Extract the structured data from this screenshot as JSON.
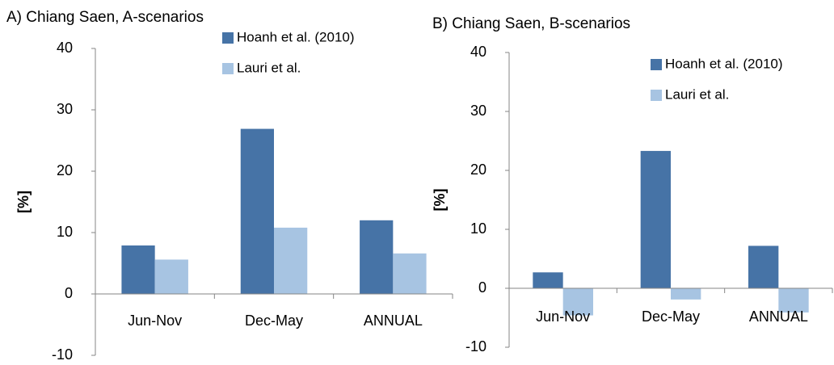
{
  "chart_data": [
    {
      "type": "bar",
      "title": "A) Chiang Saen, A-scenarios",
      "ylabel": "[%]",
      "categories": [
        "Jun-Nov",
        "Dec-May",
        "ANNUAL"
      ],
      "series": [
        {
          "name": "Hoanh et al. (2010)",
          "color": "#4673a6",
          "values": [
            7.9,
            26.9,
            12.0
          ]
        },
        {
          "name": "Lauri et al.",
          "color": "#a7c4e2",
          "values": [
            5.6,
            10.8,
            6.6
          ]
        }
      ],
      "ylim": [
        -10,
        40
      ],
      "yticks": [
        -10,
        0,
        10,
        20,
        30,
        40
      ]
    },
    {
      "type": "bar",
      "title": "B) Chiang Saen, B-scenarios",
      "ylabel": "[%]",
      "categories": [
        "Jun-Nov",
        "Dec-May",
        "ANNUAL"
      ],
      "series": [
        {
          "name": "Hoanh et al. (2010)",
          "color": "#4673a6",
          "values": [
            2.7,
            23.3,
            7.2
          ]
        },
        {
          "name": "Lauri et al.",
          "color": "#a7c4e2",
          "values": [
            -4.6,
            -1.9,
            -4.1
          ]
        }
      ],
      "ylim": [
        -10,
        40
      ],
      "yticks": [
        -10,
        0,
        10,
        20,
        30,
        40
      ]
    }
  ]
}
